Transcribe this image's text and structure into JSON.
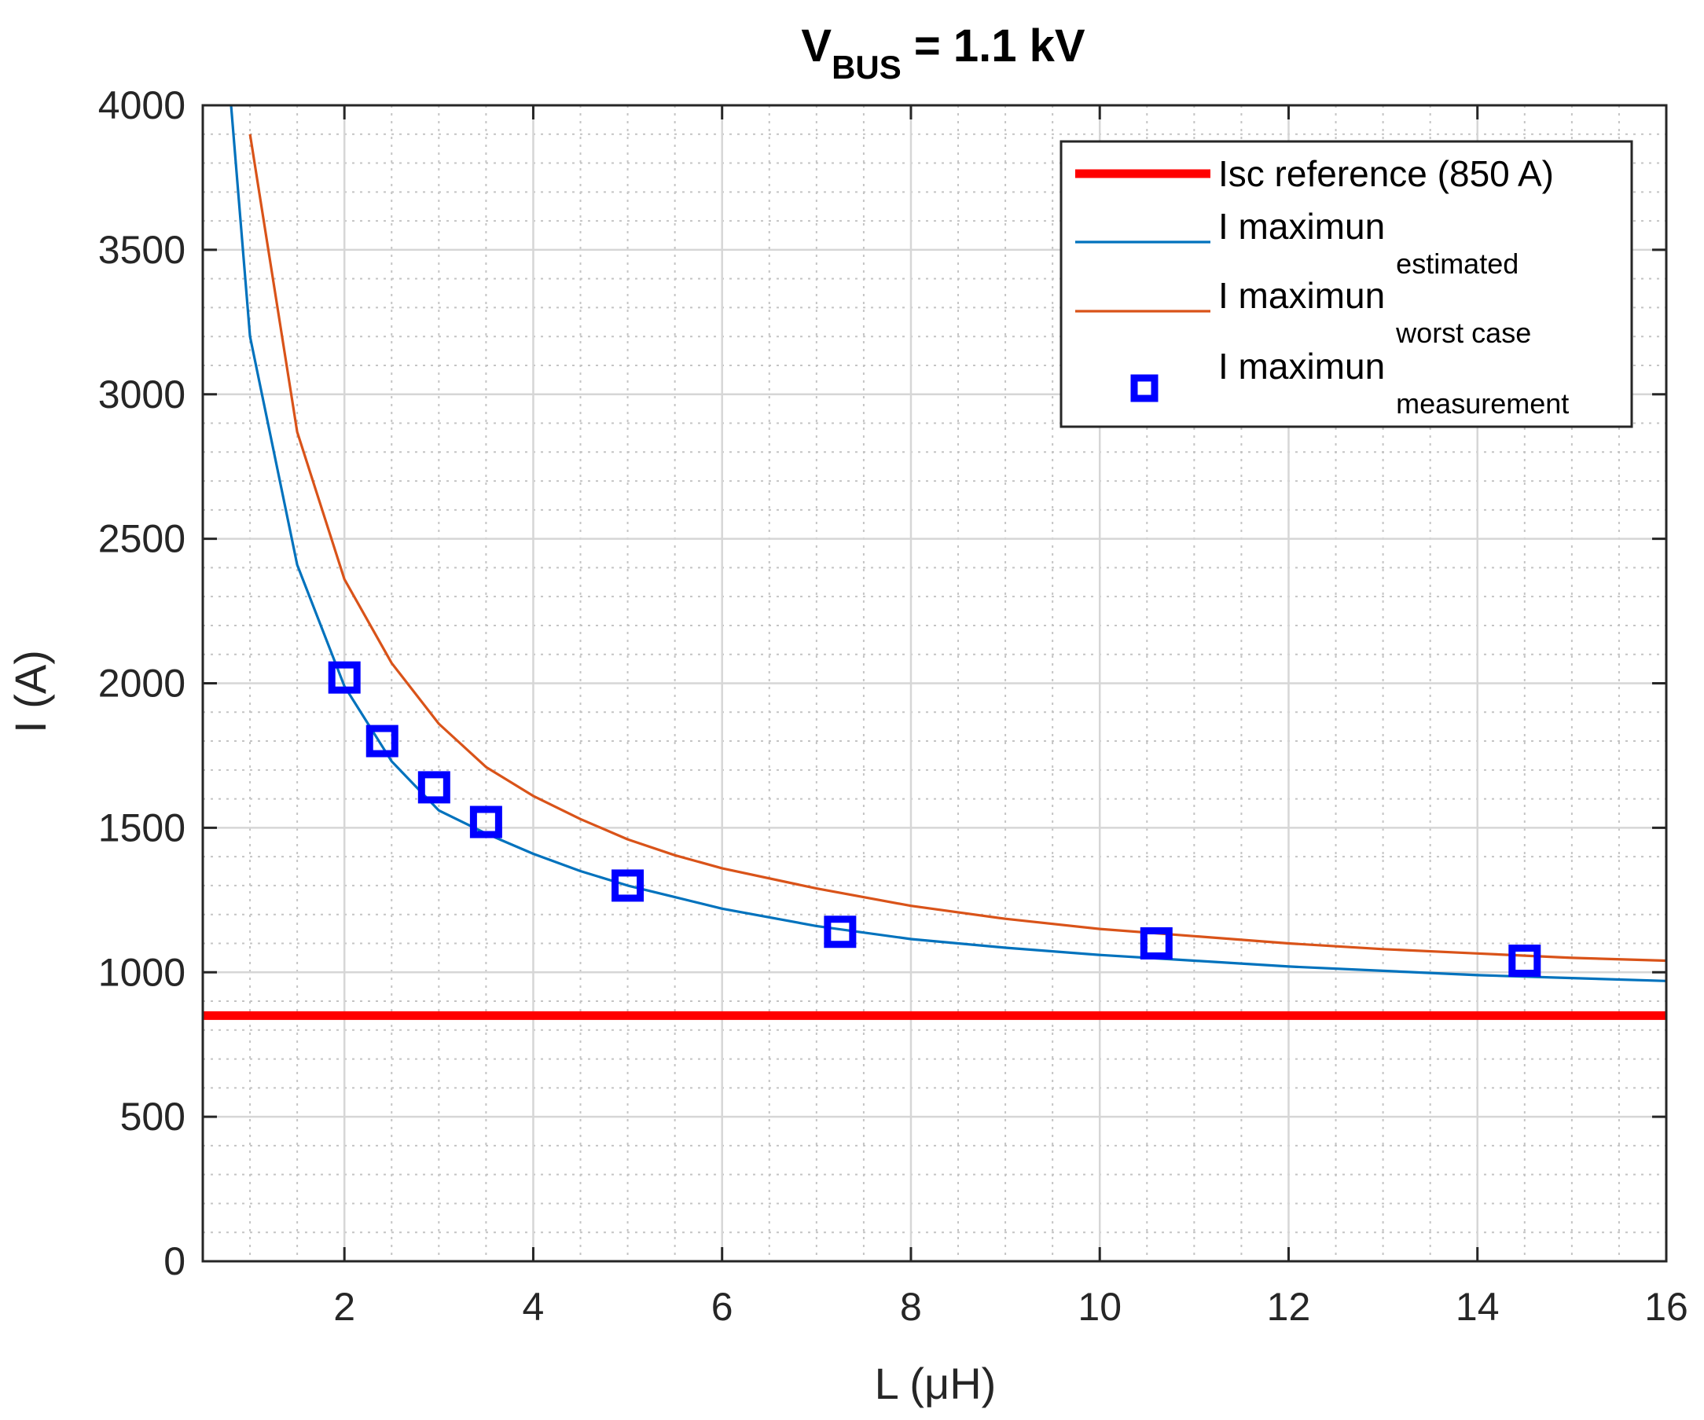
{
  "chart_data": {
    "type": "line",
    "title": {
      "main": "V",
      "subscript": "BUS",
      "rest": " = 1.1 kV"
    },
    "xlabel": "L (μH)",
    "ylabel": "I (A)",
    "xlim": [
      0.5,
      16
    ],
    "ylim": [
      0,
      4000
    ],
    "xticks": [
      2,
      4,
      6,
      8,
      10,
      12,
      14,
      16
    ],
    "yticks": [
      0,
      500,
      1000,
      1500,
      2000,
      2500,
      3000,
      3500,
      4000
    ],
    "grid": true,
    "minor_grid": true,
    "legend_position": "top-right",
    "series": [
      {
        "name": "Isc reference (850 A)",
        "kind": "hline",
        "color": "#ff0000",
        "x": [
          0.5,
          16
        ],
        "y": [
          850,
          850
        ]
      },
      {
        "name": "I maximun",
        "name_subscript": "estimated",
        "kind": "line",
        "color": "#0072bd",
        "x": [
          0.8,
          1.0,
          1.5,
          2.0,
          2.5,
          3.0,
          3.5,
          4.0,
          4.5,
          5.0,
          5.5,
          6.0,
          7.0,
          8.0,
          9.0,
          10.0,
          11.0,
          12.0,
          13.0,
          14.0,
          15.0,
          16.0
        ],
        "y": [
          4000,
          3200,
          2410,
          1990,
          1730,
          1560,
          1480,
          1410,
          1350,
          1300,
          1260,
          1220,
          1160,
          1115,
          1085,
          1060,
          1040,
          1020,
          1005,
          990,
          980,
          970
        ]
      },
      {
        "name": "I maximun",
        "name_subscript": "worst case",
        "kind": "line",
        "color": "#d95319",
        "x": [
          1.0,
          1.5,
          2.0,
          2.5,
          3.0,
          3.5,
          4.0,
          4.5,
          5.0,
          5.5,
          6.0,
          7.0,
          8.0,
          9.0,
          10.0,
          11.0,
          12.0,
          13.0,
          14.0,
          15.0,
          16.0
        ],
        "y": [
          3900,
          2870,
          2360,
          2070,
          1860,
          1710,
          1610,
          1530,
          1460,
          1405,
          1360,
          1290,
          1230,
          1185,
          1150,
          1125,
          1100,
          1080,
          1065,
          1050,
          1040
        ]
      },
      {
        "name": "I maximun",
        "name_subscript": "measurement",
        "kind": "scatter",
        "marker": "square",
        "color": "#0000ff",
        "x": [
          2.0,
          2.4,
          2.95,
          3.5,
          5.0,
          7.25,
          10.6,
          14.5
        ],
        "y": [
          2020,
          1800,
          1640,
          1520,
          1300,
          1140,
          1100,
          1040
        ]
      }
    ]
  }
}
